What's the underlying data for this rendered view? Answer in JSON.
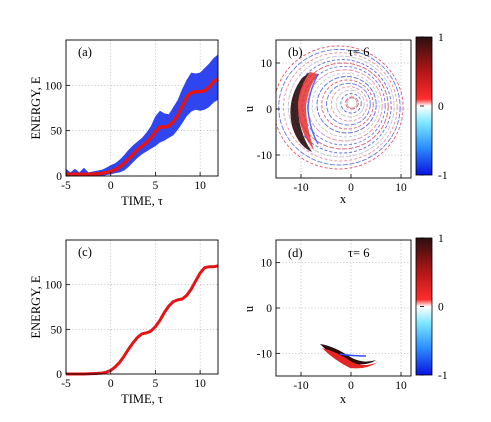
{
  "colors": {
    "mean_line": "#e31414",
    "band": "#2f45f0",
    "frame": "#000000",
    "grid": "#9a9a9a"
  },
  "chart_data": [
    {
      "panel": "(a)",
      "type": "line",
      "xlabel": "TIME,  τ",
      "ylabel": "ENERGY, E",
      "xlim": [
        -5,
        12
      ],
      "ylim": [
        0,
        150
      ],
      "xticks": [
        -5,
        0,
        5,
        10
      ],
      "yticks": [
        0,
        50,
        100
      ],
      "grid": true,
      "series": [
        {
          "x": [
            -5,
            -4,
            -3,
            -2,
            -1,
            0,
            0.5,
            1,
            1.5,
            2,
            2.5,
            3,
            3.5,
            4,
            4.5,
            5,
            5.5,
            6,
            6.5,
            7,
            7.5,
            8,
            8.5,
            9,
            9.5,
            10,
            10.5,
            11,
            11.5,
            12
          ],
          "y": [
            2,
            2,
            2,
            2,
            3,
            5,
            7,
            10,
            14,
            19,
            24,
            29,
            33,
            37,
            42,
            49,
            54,
            54,
            55,
            60,
            67,
            77,
            87,
            92,
            93,
            93,
            94,
            98,
            104,
            107
          ]
        }
      ],
      "band": {
        "x": [
          -5,
          -4.5,
          -4,
          -3.5,
          -3,
          -2.5,
          -2,
          -1.5,
          -1,
          -0.5,
          0,
          0.5,
          1,
          1.5,
          2,
          2.5,
          3,
          3.5,
          4,
          4.5,
          5,
          5.5,
          6,
          6.5,
          7,
          7.5,
          8,
          8.5,
          9,
          9.5,
          10,
          10.5,
          11,
          11.5,
          12
        ],
        "upper": [
          8,
          4,
          8,
          4,
          9,
          4,
          5,
          6,
          7,
          9,
          12,
          14,
          18,
          23,
          29,
          34,
          38,
          42,
          48,
          55,
          66,
          72,
          69,
          68,
          76,
          84,
          96,
          106,
          114,
          113,
          114,
          119,
          124,
          130,
          134
        ],
        "lower": [
          0,
          0,
          0,
          0,
          0,
          0,
          0,
          0,
          0,
          1,
          2,
          3,
          4,
          6,
          10,
          15,
          20,
          24,
          27,
          30,
          33,
          37,
          39,
          42,
          45,
          51,
          58,
          66,
          71,
          73,
          72,
          73,
          76,
          81,
          84
        ]
      }
    },
    {
      "panel": "(b)",
      "type": "heatmap",
      "annotation": "τ= 6",
      "xlabel": "x",
      "ylabel": "u",
      "xlim": [
        -15,
        12
      ],
      "ylim": [
        -15,
        15
      ],
      "xticks": [
        -10,
        0,
        10
      ],
      "yticks": [
        -10,
        0,
        10
      ],
      "colorbar": {
        "range": [
          -1,
          1
        ],
        "ticks": [
          -1,
          0,
          1
        ]
      }
    },
    {
      "panel": "(c)",
      "type": "line",
      "xlabel": "TIME,  τ",
      "ylabel": "ENERGY, E",
      "xlim": [
        -5,
        12
      ],
      "ylim": [
        0,
        150
      ],
      "xticks": [
        -5,
        0,
        5,
        10
      ],
      "yticks": [
        0,
        50,
        100
      ],
      "grid": true,
      "series": [
        {
          "x": [
            -5,
            -4,
            -3,
            -2,
            -1,
            -0.5,
            0,
            0.5,
            1,
            1.5,
            2,
            2.5,
            3,
            3.5,
            4,
            4.5,
            5,
            5.5,
            6,
            6.5,
            7,
            7.5,
            8,
            8.5,
            9,
            9.5,
            10,
            10.5,
            11,
            11.5,
            12
          ],
          "y": [
            0,
            0,
            0,
            0.5,
            1,
            2,
            4,
            8,
            13,
            20,
            28,
            35,
            41,
            45,
            46,
            48,
            53,
            60,
            69,
            76,
            81,
            83,
            84,
            88,
            95,
            104,
            113,
            119,
            120,
            120,
            121
          ]
        }
      ]
    },
    {
      "panel": "(d)",
      "type": "heatmap",
      "annotation": "τ= 6",
      "xlabel": "x",
      "ylabel": "u",
      "xlim": [
        -15,
        12
      ],
      "ylim": [
        -15,
        15
      ],
      "xticks": [
        -10,
        0,
        10
      ],
      "yticks": [
        -10,
        0,
        10
      ],
      "colorbar": {
        "range": [
          -1,
          1
        ],
        "ticks": [
          -1,
          0,
          1
        ]
      }
    }
  ]
}
